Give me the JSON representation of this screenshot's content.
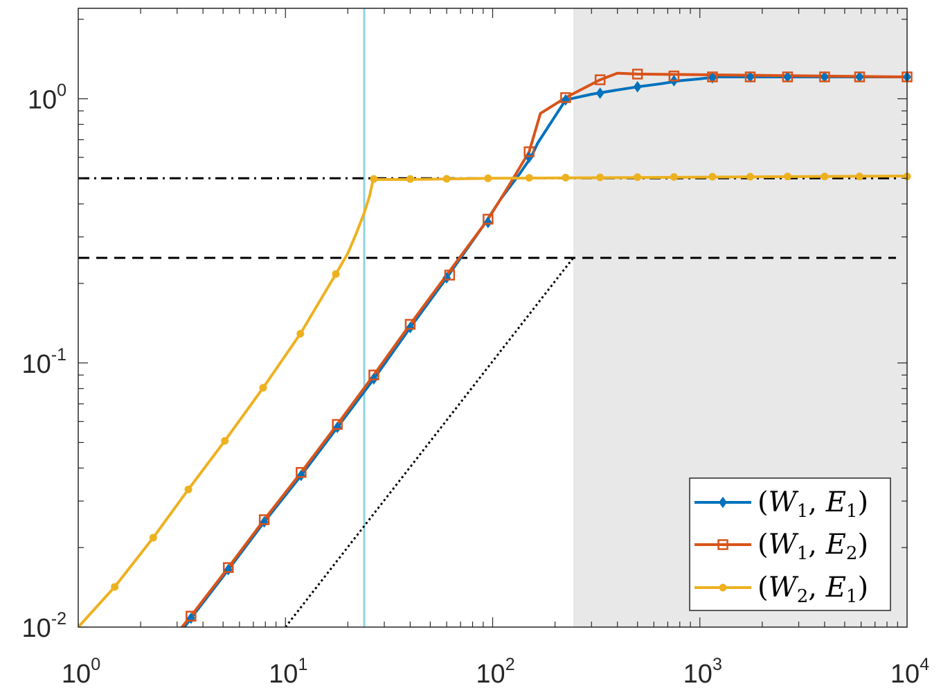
{
  "chart_data": {
    "type": "line",
    "x_scale": "log",
    "y_scale": "log",
    "xlim": [
      1,
      10000
    ],
    "ylim": [
      0.01,
      2.2
    ],
    "x_ticks": [
      {
        "value": 1,
        "base": "10",
        "exp": "0"
      },
      {
        "value": 10,
        "base": "10",
        "exp": "1"
      },
      {
        "value": 100,
        "base": "10",
        "exp": "2"
      },
      {
        "value": 1000,
        "base": "10",
        "exp": "3"
      },
      {
        "value": 10000,
        "base": "10",
        "exp": "4"
      }
    ],
    "y_ticks": [
      {
        "value": 0.01,
        "base": "10",
        "exp": "-2"
      },
      {
        "value": 0.1,
        "base": "10",
        "exp": "-1"
      },
      {
        "value": 1,
        "base": "10",
        "exp": "0"
      }
    ],
    "shaded_region": {
      "x_from": 245,
      "x_to": 10000,
      "color": "#e8e8e8"
    },
    "reference_lines": [
      {
        "kind": "vertical",
        "x": 24,
        "color": "#8fd3e3",
        "style": "solid"
      },
      {
        "kind": "horizontal",
        "y": 0.5,
        "x_from": 1,
        "x_to": 10000,
        "color": "#000000",
        "style": "dashdot"
      },
      {
        "kind": "horizontal",
        "y": 0.25,
        "x_from": 1,
        "x_to": 10000,
        "color": "#000000",
        "style": "dashed"
      },
      {
        "kind": "segment",
        "x": [
          10,
          245
        ],
        "y": [
          0.01,
          0.25
        ],
        "color": "#000000",
        "style": "dotted"
      }
    ],
    "series": [
      {
        "legend": {
          "letter1": "W",
          "sub1": "1",
          "letter2": "E",
          "sub2": "1"
        },
        "color": "#0072bd",
        "marker": "diamond",
        "line_x": [
          3.1,
          3.5,
          5.3,
          7.9,
          11.9,
          17.8,
          26.7,
          40,
          60,
          90,
          110,
          135,
          153,
          165,
          225,
          300,
          400,
          500,
          650,
          800,
          1000,
          1200,
          10000
        ],
        "line_y": [
          0.0095,
          0.0108,
          0.0165,
          0.025,
          0.0375,
          0.057,
          0.087,
          0.136,
          0.21,
          0.33,
          0.42,
          0.52,
          0.6,
          0.68,
          0.99,
          1.04,
          1.08,
          1.11,
          1.14,
          1.17,
          1.19,
          1.21,
          1.21
        ],
        "markers_x": [
          3.5,
          5.3,
          7.9,
          11.9,
          17.8,
          26.7,
          40,
          60,
          95,
          150,
          225,
          330,
          500,
          750,
          1150,
          1750,
          2650,
          4000,
          5900,
          10000
        ],
        "markers_y": [
          0.0108,
          0.0165,
          0.025,
          0.0375,
          0.057,
          0.087,
          0.136,
          0.21,
          0.34,
          0.6,
          0.99,
          1.05,
          1.11,
          1.17,
          1.2,
          1.21,
          1.21,
          1.21,
          1.21,
          1.21
        ]
      },
      {
        "legend": {
          "letter1": "W",
          "sub1": "1",
          "letter2": "E",
          "sub2": "2"
        },
        "color": "#d95319",
        "marker": "square",
        "line_x": [
          3.1,
          3.5,
          5.3,
          7.9,
          11.9,
          17.8,
          26.7,
          40,
          60,
          95,
          120,
          150,
          170,
          225,
          330,
          400,
          500,
          10000
        ],
        "line_y": [
          0.0098,
          0.011,
          0.0168,
          0.0255,
          0.0385,
          0.0585,
          0.09,
          0.14,
          0.215,
          0.35,
          0.47,
          0.63,
          0.88,
          1.01,
          1.18,
          1.25,
          1.24,
          1.21
        ],
        "markers_x": [
          3.5,
          5.3,
          7.9,
          11.9,
          17.8,
          26.7,
          40,
          62,
          95,
          150,
          225,
          330,
          500,
          750,
          1150,
          1750,
          2650,
          4000,
          5900,
          10000
        ],
        "markers_y": [
          0.011,
          0.0168,
          0.0255,
          0.0385,
          0.0585,
          0.09,
          0.14,
          0.215,
          0.35,
          0.63,
          1.01,
          1.18,
          1.24,
          1.22,
          1.21,
          1.21,
          1.21,
          1.21,
          1.21,
          1.21
        ]
      },
      {
        "legend": {
          "letter1": "W",
          "sub1": "2",
          "letter2": "E",
          "sub2": "1"
        },
        "color": "#edb120",
        "marker": "circle",
        "line_x": [
          1,
          1.5,
          2.3,
          3.4,
          5.1,
          7.8,
          11.8,
          17.5,
          20,
          22,
          24,
          25.5,
          26.5,
          40,
          60,
          100,
          10000
        ],
        "line_y": [
          0.01,
          0.0142,
          0.0218,
          0.0332,
          0.0507,
          0.0805,
          0.129,
          0.217,
          0.26,
          0.31,
          0.37,
          0.43,
          0.495,
          0.495,
          0.497,
          0.5,
          0.51
        ],
        "markers_x": [
          1.5,
          2.3,
          3.4,
          5.1,
          7.8,
          11.8,
          17.5,
          26.7,
          40,
          60,
          95,
          150,
          225,
          330,
          500,
          750,
          1150,
          1750,
          2650,
          4000,
          5900,
          10000
        ],
        "markers_y": [
          0.0142,
          0.0218,
          0.0332,
          0.0507,
          0.0805,
          0.129,
          0.217,
          0.497,
          0.497,
          0.498,
          0.5,
          0.502,
          0.503,
          0.504,
          0.505,
          0.506,
          0.507,
          0.507,
          0.508,
          0.508,
          0.508,
          0.508
        ]
      }
    ],
    "legend_position": "bottom-right"
  }
}
